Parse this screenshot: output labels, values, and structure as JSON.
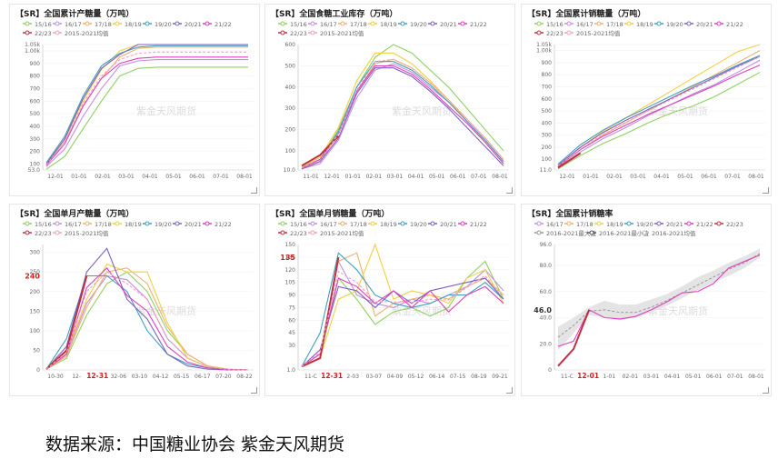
{
  "source_text": "数据来源：中国糖业协会 紫金天风期货",
  "colors": {
    "15/16": "#90d060",
    "16/17": "#c090e0",
    "17/18": "#f0b070",
    "18/19": "#f0d040",
    "19/20": "#40a0c0",
    "20/21": "#8060c0",
    "21/22": "#e040c0",
    "22/23": "#c03040",
    "2015-2021均值": "#f0a0c0",
    "2016-2021最大值": "#999999",
    "2016-2021最小值": "#555555",
    "2016-2021均值": "#bbbbbb"
  },
  "chart_data": [
    {
      "id": "p1",
      "type": "line",
      "title": "【SR】全国累计产糖量（万吨）",
      "watermark": "紫金天风期货",
      "legend": [
        "15/16",
        "16/17",
        "17/18",
        "18/19",
        "19/20",
        "20/21",
        "21/22",
        "22/23",
        "2015-2021均值"
      ],
      "yticks": [
        "53.0",
        "100",
        "200",
        "300",
        "400",
        "500",
        "600",
        "700",
        "800",
        "900",
        "1.00k",
        "1.05k"
      ],
      "ylim": [
        53,
        1050
      ],
      "xticks": [
        "12-01",
        "01-01",
        "02-01",
        "03-01",
        "04-01",
        "05-01",
        "06-01",
        "07-01",
        "08-01"
      ],
      "series": [
        {
          "name": "15/16",
          "values": [
            60,
            160,
            380,
            600,
            800,
            860,
            870,
            870,
            870,
            870,
            870,
            870
          ]
        },
        {
          "name": "16/17",
          "values": [
            80,
            220,
            480,
            700,
            880,
            920,
            930,
            930,
            930,
            930,
            930,
            930
          ]
        },
        {
          "name": "17/18",
          "values": [
            90,
            280,
            560,
            780,
            950,
            1020,
            1030,
            1030,
            1030,
            1030,
            1030,
            1030
          ]
        },
        {
          "name": "18/19",
          "values": [
            100,
            300,
            600,
            850,
            1000,
            1060,
            1070,
            1070,
            1070,
            1070,
            1070,
            1070
          ]
        },
        {
          "name": "19/20",
          "values": [
            110,
            320,
            640,
            880,
            980,
            1030,
            1040,
            1040,
            1040,
            1040,
            1040,
            1040
          ]
        },
        {
          "name": "20/21",
          "values": [
            100,
            300,
            620,
            860,
            970,
            1050,
            1060,
            1060,
            1060,
            1060,
            1060,
            1060
          ]
        },
        {
          "name": "21/22",
          "values": [
            90,
            260,
            560,
            780,
            900,
            940,
            950,
            950,
            950,
            950,
            950,
            950
          ]
        },
        {
          "name": "2015-2021均值",
          "values": [
            95,
            280,
            580,
            800,
            930,
            980,
            990,
            990,
            990,
            990,
            990,
            990
          ]
        }
      ]
    },
    {
      "id": "p2",
      "type": "line",
      "title": "【SR】全国食糖工业库存（万吨）",
      "watermark": "紫金天风期货",
      "legend": [
        "15/16",
        "16/17",
        "17/18",
        "18/19",
        "19/20",
        "20/21",
        "21/22",
        "22/23",
        "2015-2021均值"
      ],
      "yticks": [
        "10.0",
        "100",
        "200",
        "300",
        "400",
        "500",
        "600"
      ],
      "ylim": [
        10,
        600
      ],
      "xticks": [
        "11-01",
        "12-01",
        "01-01",
        "02-01",
        "03-01",
        "04-01",
        "05-01",
        "06-01",
        "07-01",
        "08-01"
      ],
      "series": [
        {
          "name": "15/16",
          "values": [
            20,
            60,
            200,
            400,
            540,
            600,
            560,
            480,
            400,
            300,
            200,
            100
          ]
        },
        {
          "name": "16/17",
          "values": [
            15,
            40,
            150,
            350,
            480,
            510,
            470,
            400,
            330,
            240,
            150,
            50
          ]
        },
        {
          "name": "17/18",
          "values": [
            20,
            50,
            180,
            380,
            510,
            530,
            490,
            420,
            340,
            250,
            160,
            60
          ]
        },
        {
          "name": "18/19",
          "values": [
            25,
            70,
            210,
            430,
            560,
            560,
            510,
            430,
            340,
            240,
            140,
            40
          ]
        },
        {
          "name": "19/20",
          "values": [
            20,
            60,
            190,
            400,
            520,
            520,
            480,
            410,
            330,
            240,
            150,
            50
          ]
        },
        {
          "name": "20/21",
          "values": [
            15,
            50,
            160,
            370,
            490,
            490,
            450,
            380,
            300,
            210,
            120,
            30
          ]
        },
        {
          "name": "21/22",
          "values": [
            20,
            60,
            180,
            380,
            500,
            500,
            460,
            390,
            310,
            230,
            140,
            40
          ]
        },
        {
          "name": "22/23",
          "values": [
            30,
            80,
            170
          ]
        },
        {
          "name": "2015-2021均值",
          "values": [
            20,
            55,
            180,
            385,
            520,
            530,
            490,
            420,
            340,
            250,
            160,
            60
          ]
        }
      ]
    },
    {
      "id": "p3",
      "type": "line",
      "title": "【SR】全国累计销糖量（万吨）",
      "watermark": "紫金天风期货",
      "legend": [
        "15/16",
        "16/17",
        "17/18",
        "18/19",
        "19/20",
        "20/21",
        "21/22",
        "22/23",
        "2015-2021均值"
      ],
      "yticks": [
        "11.0",
        "100",
        "200",
        "300",
        "400",
        "500",
        "600",
        "700",
        "800",
        "900",
        "1.00k",
        "1.05k"
      ],
      "ylim": [
        11,
        1050
      ],
      "xticks": [
        "12-01",
        "01-01",
        "02-01",
        "03-01",
        "04-01",
        "05-01",
        "06-01",
        "07-01",
        "08-01"
      ],
      "series": [
        {
          "name": "15/16",
          "values": [
            20,
            130,
            230,
            310,
            400,
            480,
            540,
            620,
            720,
            820
          ]
        },
        {
          "name": "16/17",
          "values": [
            30,
            160,
            270,
            360,
            460,
            550,
            640,
            720,
            820,
            920
          ]
        },
        {
          "name": "17/18",
          "values": [
            40,
            180,
            300,
            400,
            500,
            600,
            700,
            800,
            900,
            1000
          ]
        },
        {
          "name": "18/19",
          "values": [
            50,
            200,
            330,
            440,
            550,
            660,
            770,
            880,
            990,
            1080
          ]
        },
        {
          "name": "19/20",
          "values": [
            60,
            220,
            340,
            440,
            530,
            620,
            710,
            790,
            880,
            960
          ]
        },
        {
          "name": "20/21",
          "values": [
            50,
            200,
            320,
            420,
            510,
            600,
            690,
            780,
            870,
            950
          ]
        },
        {
          "name": "21/22",
          "values": [
            40,
            180,
            290,
            380,
            470,
            550,
            630,
            710,
            800,
            880
          ]
        },
        {
          "name": "22/23",
          "values": [
            30,
            150
          ]
        },
        {
          "name": "2015-2021均值",
          "values": [
            45,
            185,
            305,
            405,
            500,
            590,
            680,
            770,
            860,
            950
          ]
        }
      ]
    },
    {
      "id": "p4",
      "type": "line",
      "title": "【SR】全国单月产糖量（万吨）",
      "watermark": "紫金天风期货",
      "legend": [
        "15/16",
        "16/17",
        "17/18",
        "18/19",
        "19/20",
        "20/21",
        "21/22",
        "22/23",
        "2015-2021均值"
      ],
      "yticks": [
        "0",
        "50",
        "100",
        "150",
        "200",
        "250",
        "300"
      ],
      "ylim": [
        0,
        320
      ],
      "xticks": [
        "10-30",
        "12-",
        "12-31",
        "32-06",
        "03-10",
        "04-12",
        "05-15",
        "06-17",
        "07-20",
        "08-22"
      ],
      "highlight_x": "12-31",
      "highlight_y": "240",
      "series": [
        {
          "name": "15/16",
          "values": [
            2,
            30,
            140,
            220,
            250,
            200,
            100,
            40,
            10,
            2,
            0
          ]
        },
        {
          "name": "16/17",
          "values": [
            2,
            40,
            170,
            240,
            230,
            180,
            80,
            30,
            8,
            1,
            0
          ]
        },
        {
          "name": "17/18",
          "values": [
            2,
            35,
            160,
            250,
            260,
            220,
            110,
            40,
            10,
            2,
            0
          ]
        },
        {
          "name": "18/19",
          "values": [
            2,
            45,
            180,
            270,
            250,
            250,
            120,
            30,
            8,
            1,
            0
          ]
        },
        {
          "name": "19/20",
          "values": [
            2,
            80,
            240,
            240,
            200,
            100,
            40,
            15,
            5,
            1,
            0
          ]
        },
        {
          "name": "20/21",
          "values": [
            2,
            60,
            250,
            310,
            180,
            130,
            40,
            10,
            2,
            0,
            0
          ]
        },
        {
          "name": "21/22",
          "values": [
            2,
            40,
            210,
            260,
            190,
            150,
            60,
            20,
            5,
            1,
            0
          ]
        },
        {
          "name": "22/23",
          "values": [
            2,
            50,
            240
          ]
        },
        {
          "name": "2015-2021均值",
          "values": [
            2,
            45,
            200,
            250,
            220,
            180,
            80,
            30,
            8,
            1,
            0
          ]
        }
      ]
    },
    {
      "id": "p5",
      "type": "line",
      "title": "【SR】全国单月销糖量（万吨）",
      "watermark": "紫金天风期货",
      "legend": [
        "15/16",
        "16/17",
        "17/18",
        "18/19",
        "19/20",
        "20/21",
        "21/22",
        "22/23",
        "2015-2021均值"
      ],
      "yticks": [
        "1.0",
        "30",
        "45",
        "60",
        "75",
        "90",
        "105",
        "120",
        "135",
        "150"
      ],
      "ylim": [
        1,
        150
      ],
      "xticks": [
        "11-C",
        "12-31",
        "2-03",
        "03-07",
        "04-09",
        "05-12",
        "06-14",
        "07-15",
        "08-19",
        "09-21"
      ],
      "highlight_x": "12-31",
      "highlight_y": "135",
      "series": [
        {
          "name": "15/16",
          "values": [
            5,
            15,
            110,
            85,
            55,
            70,
            75,
            65,
            75,
            110,
            130,
            85
          ]
        },
        {
          "name": "16/17",
          "values": [
            5,
            20,
            130,
            90,
            80,
            75,
            85,
            80,
            90,
            100,
            120,
            95
          ]
        },
        {
          "name": "17/18",
          "values": [
            5,
            20,
            130,
            140,
            65,
            80,
            85,
            90,
            85,
            100,
            110,
            90
          ]
        },
        {
          "name": "18/19",
          "values": [
            5,
            15,
            85,
            95,
            150,
            85,
            95,
            90,
            80,
            110,
            120,
            80
          ]
        },
        {
          "name": "19/20",
          "values": [
            5,
            45,
            140,
            120,
            90,
            80,
            75,
            80,
            90,
            90,
            105,
            85
          ]
        },
        {
          "name": "20/21",
          "values": [
            5,
            25,
            100,
            95,
            75,
            95,
            80,
            95,
            100,
            105,
            110,
            85
          ]
        },
        {
          "name": "21/22",
          "values": [
            5,
            20,
            110,
            100,
            80,
            95,
            75,
            95,
            70,
            90,
            100,
            80
          ]
        },
        {
          "name": "22/23",
          "values": [
            5,
            15,
            135
          ]
        },
        {
          "name": "2015-2021均值",
          "values": [
            5,
            22,
            118,
            105,
            82,
            82,
            81,
            85,
            84,
            99,
            113,
            86
          ]
        }
      ]
    },
    {
      "id": "p6",
      "type": "line",
      "title": "【SR】全国累计销糖率",
      "watermark": "紫金天风期货",
      "legend": [
        "16/17",
        "17/18",
        "18/19",
        "19/20",
        "20/21",
        "21/22",
        "22/23",
        "2016-2021最大值",
        "2016-2021最小值",
        "2016-2021均值"
      ],
      "yticks": [
        "0",
        "20.0",
        "40.0",
        "60.0",
        "80.0",
        "96.0"
      ],
      "ylim": [
        0,
        96
      ],
      "xticks": [
        "11-C",
        "12-01",
        "1-01",
        "02-01",
        "03-01",
        "04-01",
        "05-01",
        "06-01",
        "07-01",
        "08-01"
      ],
      "highlight_x": "12-01",
      "highlight_y": "46.0",
      "band_max": [
        33,
        40,
        48,
        53,
        50,
        50,
        54,
        58,
        64,
        71,
        76,
        82,
        87,
        93
      ],
      "band_min": [
        15,
        28,
        42,
        40,
        38,
        40,
        44,
        49,
        55,
        61,
        67,
        72,
        78,
        86
      ],
      "mean": [
        25,
        34,
        45,
        46,
        44,
        44,
        48,
        53,
        59,
        65,
        71,
        77,
        82,
        89
      ],
      "series": [
        {
          "name": "21/22",
          "values": [
            18,
            22,
            46,
            40,
            39,
            41,
            46,
            52,
            59,
            60,
            66,
            78,
            83,
            88
          ]
        },
        {
          "name": "22/23",
          "values": [
            3,
            16,
            46
          ]
        }
      ]
    }
  ]
}
